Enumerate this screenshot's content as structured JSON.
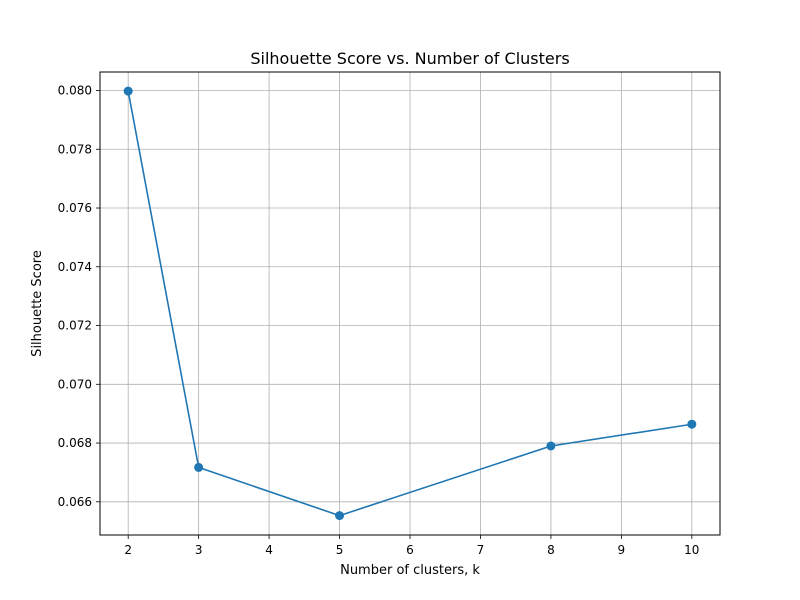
{
  "chart_data": {
    "type": "line",
    "title": "Silhouette Score vs. Number of Clusters",
    "xlabel": "Number of clusters, k",
    "ylabel": "Silhouette Score",
    "x": [
      2,
      3,
      5,
      8,
      10
    ],
    "series": [
      {
        "values": [
          0.07998,
          0.06717,
          0.06553,
          0.0679,
          0.06864
        ]
      }
    ],
    "xlim": [
      1.6,
      10.4
    ],
    "ylim": [
      0.06487,
      0.08063
    ],
    "x_ticks": [
      2,
      3,
      4,
      5,
      6,
      7,
      8,
      9,
      10
    ],
    "y_ticks": [
      0.066,
      0.068,
      0.07,
      0.072,
      0.074,
      0.076,
      0.078,
      0.08
    ],
    "y_tick_labels": [
      "0.066",
      "0.068",
      "0.070",
      "0.072",
      "0.074",
      "0.076",
      "0.078",
      "0.080"
    ],
    "grid": true,
    "marker": "circle",
    "line_color": "#1f77b4"
  }
}
